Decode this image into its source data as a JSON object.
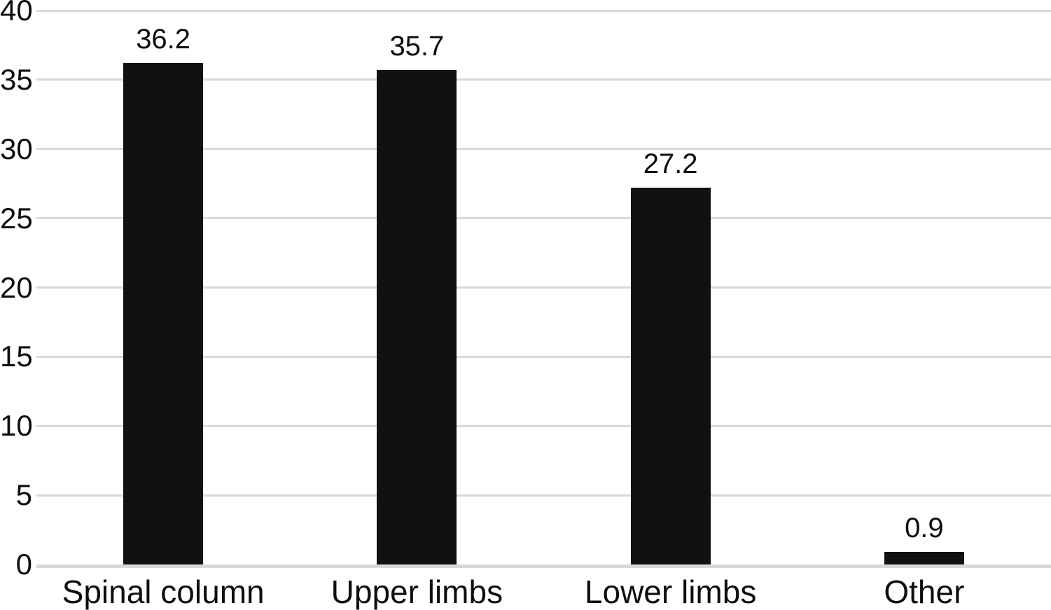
{
  "chart_data": {
    "type": "bar",
    "title": "",
    "xlabel": "",
    "ylabel": "",
    "categories": [
      "Spinal column",
      "Upper limbs",
      "Lower limbs",
      "Other"
    ],
    "values": [
      36.2,
      35.7,
      27.2,
      0.9
    ],
    "value_labels": [
      "36.2",
      "35.7",
      "27.2",
      "0.9"
    ],
    "ylim": [
      0,
      40
    ],
    "yticks": [
      0,
      5,
      10,
      15,
      20,
      25,
      30,
      35,
      40
    ],
    "grid": "horizontal",
    "legend_position": "none",
    "bar_color": "#131110",
    "gridline_color": "#d9d9d9",
    "text_color": "#0f0e0c",
    "background_color": "#ffffff"
  }
}
